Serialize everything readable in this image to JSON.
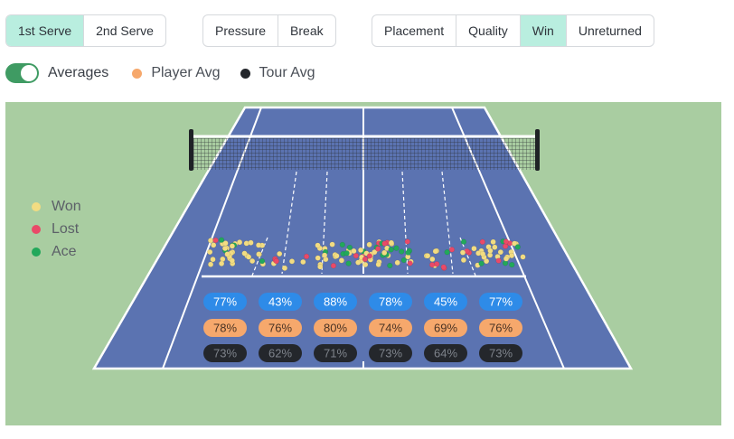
{
  "serve_tabs": [
    {
      "label": "1st Serve",
      "active": true
    },
    {
      "label": "2nd Serve",
      "active": false
    }
  ],
  "situation_tabs": [
    {
      "label": "Pressure",
      "active": false
    },
    {
      "label": "Break",
      "active": false
    }
  ],
  "metric_tabs": [
    {
      "label": "Placement",
      "active": false
    },
    {
      "label": "Quality",
      "active": false
    },
    {
      "label": "Win",
      "active": true
    },
    {
      "label": "Unreturned",
      "active": false
    }
  ],
  "averages": {
    "toggle_label": "Averages",
    "enabled": true,
    "player_label": "Player Avg",
    "tour_label": "Tour Avg"
  },
  "colors": {
    "accent_active": "#b9eedf",
    "toggle_on": "#3f9b63",
    "player_avg": "#f6a86c",
    "tour_avg": "#24272c",
    "zone_badge": "#2e8be8",
    "won": "#f2dc82",
    "lost": "#e94a68",
    "ace": "#22a85a",
    "court": "#5b73b1",
    "surround": "#a9cda1"
  },
  "outcome_legend": [
    {
      "label": "Won",
      "color": "#f2dc82"
    },
    {
      "label": "Lost",
      "color": "#e94a68"
    },
    {
      "label": "Ace",
      "color": "#22a85a"
    }
  ],
  "zones": [
    {
      "win": "77%",
      "player_avg": "78%",
      "tour_avg": "73%"
    },
    {
      "win": "43%",
      "player_avg": "76%",
      "tour_avg": "62%"
    },
    {
      "win": "88%",
      "player_avg": "80%",
      "tour_avg": "71%"
    },
    {
      "win": "78%",
      "player_avg": "74%",
      "tour_avg": "73%"
    },
    {
      "win": "45%",
      "player_avg": "69%",
      "tour_avg": "64%"
    },
    {
      "win": "77%",
      "player_avg": "76%",
      "tour_avg": "73%"
    }
  ]
}
